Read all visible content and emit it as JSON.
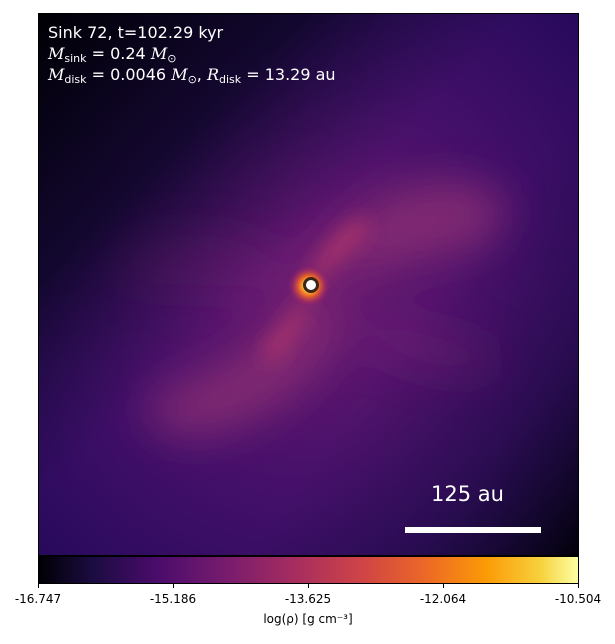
{
  "annotation": {
    "line1": "Sink 72, t=102.29 kyr",
    "msink_symbol": "M",
    "msink_sub": "sink",
    "msink_value": " = 0.24 ",
    "msun_symbol": "M",
    "msun_sub": "⊙",
    "mdisk_symbol": "M",
    "mdisk_sub": "disk",
    "mdisk_value": " = 0.0046 ",
    "rdisk_symbol": "R",
    "rdisk_sub": "disk",
    "rdisk_value": " = 13.29 au"
  },
  "scalebar": {
    "label": "125 au"
  },
  "colorbar": {
    "ticks": [
      "-16.747",
      "-15.186",
      "-13.625",
      "-12.064",
      "-10.504"
    ],
    "label": "log(ρ) [g cm⁻³]"
  },
  "colormap": "inferno",
  "colors": {
    "background": "#2a0d55",
    "spiral": "#8a2d73",
    "sink_core": "#ffffff"
  }
}
